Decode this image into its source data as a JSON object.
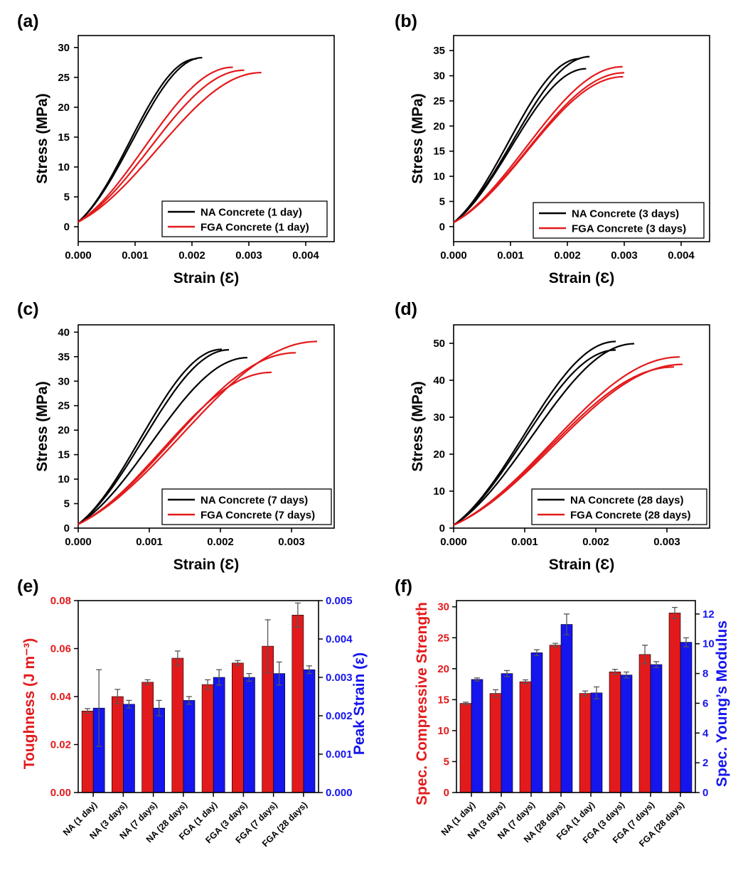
{
  "chart_data": [
    {
      "id": "a",
      "panel_label": "(a)",
      "type": "line",
      "xlabel": "Strain (Ɛ)",
      "ylabel": "Stress (MPa)",
      "xlim": [
        0,
        0.0045
      ],
      "xticks": [
        0.0,
        0.001,
        0.002,
        0.003,
        0.004
      ],
      "xtick_labels": [
        "0.000",
        "0.001",
        "0.002",
        "0.003",
        "0.004"
      ],
      "ylim": [
        -2.5,
        32
      ],
      "yticks": [
        0,
        5,
        10,
        15,
        20,
        25,
        30
      ],
      "legend_position": "bottom-right",
      "legend": [
        {
          "label": "NA Concrete (1 day)",
          "color": "#000000"
        },
        {
          "label": "FGA Concrete (1 day)",
          "color": "#e31a1c"
        }
      ],
      "series": [
        {
          "group": 0,
          "peak_strain": 0.00218,
          "peak_stress": 28.3
        },
        {
          "group": 0,
          "peak_strain": 0.00208,
          "peak_stress": 28.1
        },
        {
          "group": 1,
          "peak_strain": 0.00272,
          "peak_stress": 26.7
        },
        {
          "group": 1,
          "peak_strain": 0.00292,
          "peak_stress": 26.2
        },
        {
          "group": 1,
          "peak_strain": 0.00322,
          "peak_stress": 25.8
        }
      ]
    },
    {
      "id": "b",
      "panel_label": "(b)",
      "type": "line",
      "xlabel": "Strain (Ɛ)",
      "ylabel": "Stress (MPa)",
      "xlim": [
        0,
        0.0045
      ],
      "xticks": [
        0.0,
        0.001,
        0.002,
        0.003,
        0.004
      ],
      "xtick_labels": [
        "0.000",
        "0.001",
        "0.002",
        "0.003",
        "0.004"
      ],
      "ylim": [
        -3,
        38
      ],
      "yticks": [
        0,
        5,
        10,
        15,
        20,
        25,
        30,
        35
      ],
      "legend_position": "bottom-right",
      "legend": [
        {
          "label": "NA Concrete (3 days)",
          "color": "#000000"
        },
        {
          "label": "FGA Concrete (3 days)",
          "color": "#e31a1c"
        }
      ],
      "series": [
        {
          "group": 0,
          "peak_strain": 0.00239,
          "peak_stress": 33.8
        },
        {
          "group": 0,
          "peak_strain": 0.00222,
          "peak_stress": 33.4
        },
        {
          "group": 0,
          "peak_strain": 0.00233,
          "peak_stress": 31.4
        },
        {
          "group": 1,
          "peak_strain": 0.00297,
          "peak_stress": 31.8
        },
        {
          "group": 1,
          "peak_strain": 0.003,
          "peak_stress": 30.6
        },
        {
          "group": 1,
          "peak_strain": 0.00298,
          "peak_stress": 29.8
        }
      ]
    },
    {
      "id": "c",
      "panel_label": "(c)",
      "type": "line",
      "xlabel": "Strain (Ɛ)",
      "ylabel": "Stress (MPa)",
      "xlim": [
        0,
        0.0036
      ],
      "xticks": [
        0.0,
        0.001,
        0.002,
        0.003
      ],
      "xtick_labels": [
        "0.000",
        "0.001",
        "0.002",
        "0.003"
      ],
      "ylim": [
        0,
        41.5
      ],
      "yticks": [
        0,
        5,
        10,
        15,
        20,
        25,
        30,
        35,
        40
      ],
      "legend_position": "bottom-right",
      "legend": [
        {
          "label": "NA Concrete (7 days)",
          "color": "#000000"
        },
        {
          "label": "FGA Concrete (7 days)",
          "color": "#e31a1c"
        }
      ],
      "series": [
        {
          "group": 0,
          "peak_strain": 0.00202,
          "peak_stress": 36.5
        },
        {
          "group": 0,
          "peak_strain": 0.00212,
          "peak_stress": 36.4
        },
        {
          "group": 0,
          "peak_strain": 0.00238,
          "peak_stress": 34.8
        },
        {
          "group": 1,
          "peak_strain": 0.00336,
          "peak_stress": 38.1
        },
        {
          "group": 1,
          "peak_strain": 0.00306,
          "peak_stress": 35.8
        },
        {
          "group": 1,
          "peak_strain": 0.00272,
          "peak_stress": 31.8
        }
      ]
    },
    {
      "id": "d",
      "panel_label": "(d)",
      "type": "line",
      "xlabel": "Strain (Ɛ)",
      "ylabel": "Stress (MPa)",
      "xlim": [
        0,
        0.0036
      ],
      "xticks": [
        0.0,
        0.001,
        0.002,
        0.003
      ],
      "xtick_labels": [
        "0.000",
        "0.001",
        "0.002",
        "0.003"
      ],
      "ylim": [
        0,
        55
      ],
      "yticks": [
        0,
        10,
        20,
        30,
        40,
        50
      ],
      "legend_position": "bottom-right",
      "legend": [
        {
          "label": "NA Concrete (28 days)",
          "color": "#000000"
        },
        {
          "label": "FGA Concrete (28 days)",
          "color": "#e31a1c"
        }
      ],
      "series": [
        {
          "group": 0,
          "peak_strain": 0.00228,
          "peak_stress": 50.5
        },
        {
          "group": 0,
          "peak_strain": 0.00228,
          "peak_stress": 48.2
        },
        {
          "group": 0,
          "peak_strain": 0.00254,
          "peak_stress": 49.9
        },
        {
          "group": 1,
          "peak_strain": 0.00318,
          "peak_stress": 46.3
        },
        {
          "group": 1,
          "peak_strain": 0.00322,
          "peak_stress": 44.3
        },
        {
          "group": 1,
          "peak_strain": 0.0031,
          "peak_stress": 43.6
        }
      ]
    },
    {
      "id": "e",
      "panel_label": "(e)",
      "type": "bar",
      "categories": [
        "NA (1 day)",
        "NA (3 days)",
        "NA (7 days)",
        "NA (28 days)",
        "FGA (1 day)",
        "FGA (3 days)",
        "FGA (7 days)",
        "FGA (28 days)"
      ],
      "left_axis": {
        "label": "Toughness (J m⁻³)",
        "color": "#e31a1c",
        "lim": [
          0,
          0.08
        ],
        "ticks": [
          0,
          0.02,
          0.04,
          0.06,
          0.08
        ],
        "tick_labels": [
          "0.00",
          "0.02",
          "0.04",
          "0.06",
          "0.08"
        ]
      },
      "right_axis": {
        "label": "Peak Strain (ε)",
        "color": "#1515ee",
        "lim": [
          0,
          0.005
        ],
        "ticks": [
          0,
          0.001,
          0.002,
          0.003,
          0.004,
          0.005
        ],
        "tick_labels": [
          "0.000",
          "0.001",
          "0.002",
          "0.003",
          "0.004",
          "0.005"
        ]
      },
      "series": [
        {
          "name": "Toughness",
          "axis": "left",
          "color": "#e31a1c",
          "values": [
            0.034,
            0.04,
            0.046,
            0.056,
            0.045,
            0.054,
            0.061,
            0.074
          ],
          "errors": [
            0.001,
            0.003,
            0.001,
            0.003,
            0.002,
            0.001,
            0.011,
            0.005
          ]
        },
        {
          "name": "Peak Strain",
          "axis": "right",
          "color": "#1515ee",
          "values": [
            0.0022,
            0.0023,
            0.0022,
            0.0024,
            0.003,
            0.003,
            0.0031,
            0.0032
          ],
          "errors": [
            0.001,
            0.0001,
            0.0002,
            0.0001,
            0.0002,
            0.0001,
            0.0003,
            0.0001
          ]
        }
      ]
    },
    {
      "id": "f",
      "panel_label": "(f)",
      "type": "bar",
      "categories": [
        "NA (1 day)",
        "NA (3 days)",
        "NA (7 days)",
        "NA (28 days)",
        "FGA (1 day)",
        "FGA (3 days)",
        "FGA (7 days)",
        "FGA (28 days)"
      ],
      "left_axis": {
        "label": "Spec. Compressive Strength",
        "color": "#e31a1c",
        "lim": [
          0,
          31
        ],
        "ticks": [
          0,
          5,
          10,
          15,
          20,
          25,
          30
        ],
        "tick_labels": [
          "0",
          "5",
          "10",
          "15",
          "20",
          "25",
          "30"
        ]
      },
      "right_axis": {
        "label": "Spec. Young’s Modulus",
        "color": "#1515ee",
        "lim": [
          0,
          12.9
        ],
        "ticks": [
          0,
          2,
          4,
          6,
          8,
          10,
          12
        ],
        "tick_labels": [
          "0",
          "2",
          "4",
          "6",
          "8",
          "10",
          "12"
        ]
      },
      "series": [
        {
          "name": "Spec. Compressive Strength",
          "axis": "left",
          "color": "#e31a1c",
          "values": [
            14.4,
            16.0,
            17.9,
            23.8,
            16.0,
            19.5,
            22.3,
            29.0
          ],
          "errors": [
            0.2,
            0.6,
            0.3,
            0.3,
            0.4,
            0.4,
            1.5,
            0.9
          ]
        },
        {
          "name": "Spec. Young's Modulus",
          "axis": "right",
          "color": "#1515ee",
          "values": [
            7.6,
            8.0,
            9.4,
            11.3,
            6.7,
            7.9,
            8.6,
            10.1
          ],
          "errors": [
            0.1,
            0.2,
            0.2,
            0.7,
            0.4,
            0.2,
            0.2,
            0.3
          ]
        }
      ]
    }
  ]
}
